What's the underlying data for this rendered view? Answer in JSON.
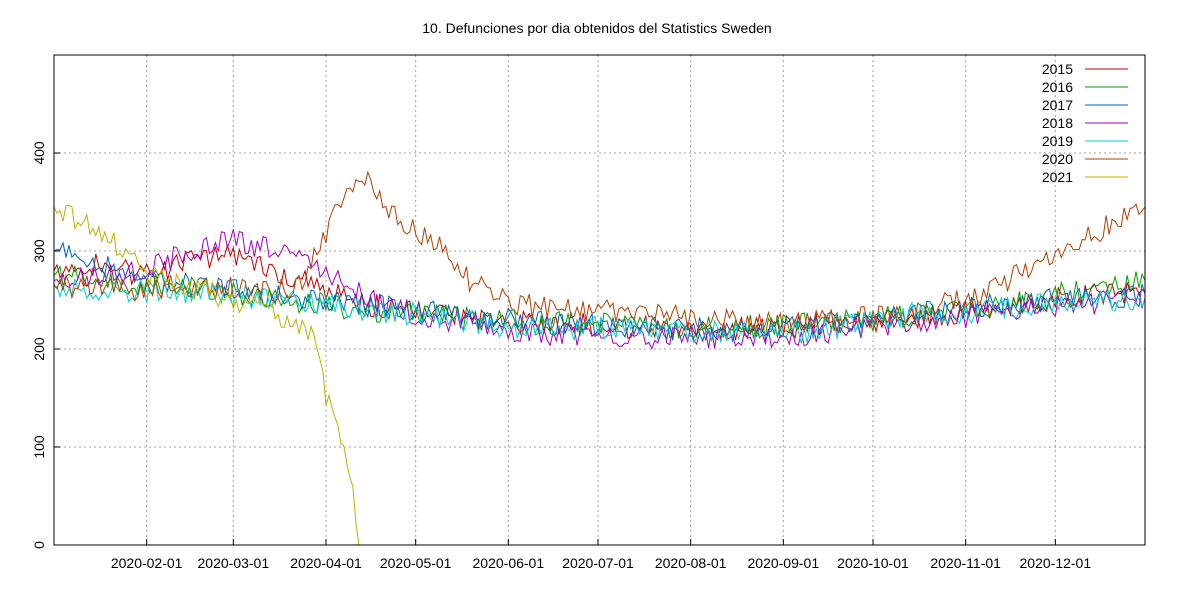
{
  "chart_data": {
    "type": "line",
    "title": "10. Defunciones por dia obtenidos del Statistics Sweden",
    "xlabel": "",
    "ylabel": "",
    "x_range": [
      "2020-01-01",
      "2020-12-31"
    ],
    "ylim": [
      0,
      500
    ],
    "y_ticks": [
      0,
      100,
      200,
      300,
      400
    ],
    "x_ticks": [
      "2020-02-01",
      "2020-03-01",
      "2020-04-01",
      "2020-05-01",
      "2020-06-01",
      "2020-07-01",
      "2020-08-01",
      "2020-09-01",
      "2020-10-01",
      "2020-11-01",
      "2020-12-01"
    ],
    "grid": true,
    "legend_position": "top-right",
    "series": [
      {
        "name": "2015",
        "color": "#c00000",
        "points": [
          [
            "2020-01-01",
            280
          ],
          [
            "2020-01-15",
            285
          ],
          [
            "2020-02-01",
            275
          ],
          [
            "2020-02-15",
            290
          ],
          [
            "2020-03-01",
            295
          ],
          [
            "2020-03-15",
            280
          ],
          [
            "2020-04-01",
            260
          ],
          [
            "2020-04-15",
            245
          ],
          [
            "2020-05-01",
            240
          ],
          [
            "2020-05-15",
            235
          ],
          [
            "2020-06-01",
            228
          ],
          [
            "2020-06-15",
            225
          ],
          [
            "2020-07-01",
            225
          ],
          [
            "2020-07-15",
            222
          ],
          [
            "2020-08-01",
            220
          ],
          [
            "2020-08-15",
            220
          ],
          [
            "2020-09-01",
            222
          ],
          [
            "2020-09-15",
            225
          ],
          [
            "2020-10-01",
            228
          ],
          [
            "2020-10-15",
            232
          ],
          [
            "2020-11-01",
            238
          ],
          [
            "2020-11-15",
            242
          ],
          [
            "2020-12-01",
            250
          ],
          [
            "2020-12-15",
            255
          ],
          [
            "2020-12-31",
            258
          ]
        ]
      },
      {
        "name": "2016",
        "color": "#00a000",
        "points": [
          [
            "2020-01-01",
            275
          ],
          [
            "2020-01-15",
            270
          ],
          [
            "2020-02-01",
            265
          ],
          [
            "2020-02-15",
            262
          ],
          [
            "2020-03-01",
            258
          ],
          [
            "2020-03-15",
            252
          ],
          [
            "2020-04-01",
            245
          ],
          [
            "2020-04-15",
            240
          ],
          [
            "2020-05-01",
            235
          ],
          [
            "2020-05-15",
            232
          ],
          [
            "2020-06-01",
            228
          ],
          [
            "2020-06-15",
            226
          ],
          [
            "2020-07-01",
            225
          ],
          [
            "2020-07-15",
            222
          ],
          [
            "2020-08-01",
            222
          ],
          [
            "2020-08-15",
            222
          ],
          [
            "2020-09-01",
            224
          ],
          [
            "2020-09-15",
            226
          ],
          [
            "2020-10-01",
            230
          ],
          [
            "2020-10-15",
            235
          ],
          [
            "2020-11-01",
            240
          ],
          [
            "2020-11-15",
            245
          ],
          [
            "2020-12-01",
            255
          ],
          [
            "2020-12-15",
            262
          ],
          [
            "2020-12-31",
            270
          ]
        ]
      },
      {
        "name": "2017",
        "color": "#0060c0",
        "points": [
          [
            "2020-01-01",
            300
          ],
          [
            "2020-01-15",
            290
          ],
          [
            "2020-02-01",
            270
          ],
          [
            "2020-02-15",
            265
          ],
          [
            "2020-03-01",
            260
          ],
          [
            "2020-03-15",
            255
          ],
          [
            "2020-04-01",
            250
          ],
          [
            "2020-04-15",
            245
          ],
          [
            "2020-05-01",
            240
          ],
          [
            "2020-05-15",
            235
          ],
          [
            "2020-06-01",
            230
          ],
          [
            "2020-06-15",
            226
          ],
          [
            "2020-07-01",
            224
          ],
          [
            "2020-07-15",
            222
          ],
          [
            "2020-08-01",
            220
          ],
          [
            "2020-08-15",
            220
          ],
          [
            "2020-09-01",
            222
          ],
          [
            "2020-09-15",
            226
          ],
          [
            "2020-10-01",
            230
          ],
          [
            "2020-10-15",
            236
          ],
          [
            "2020-11-01",
            242
          ],
          [
            "2020-11-15",
            245
          ],
          [
            "2020-12-01",
            250
          ],
          [
            "2020-12-15",
            252
          ],
          [
            "2020-12-31",
            256
          ]
        ]
      },
      {
        "name": "2018",
        "color": "#a000c0",
        "points": [
          [
            "2020-01-01",
            270
          ],
          [
            "2020-01-15",
            275
          ],
          [
            "2020-02-01",
            280
          ],
          [
            "2020-02-15",
            300
          ],
          [
            "2020-03-01",
            310
          ],
          [
            "2020-03-15",
            300
          ],
          [
            "2020-04-01",
            280
          ],
          [
            "2020-04-15",
            250
          ],
          [
            "2020-05-01",
            235
          ],
          [
            "2020-05-15",
            228
          ],
          [
            "2020-06-01",
            218
          ],
          [
            "2020-06-15",
            215
          ],
          [
            "2020-07-01",
            215
          ],
          [
            "2020-07-15",
            212
          ],
          [
            "2020-08-01",
            212
          ],
          [
            "2020-08-15",
            210
          ],
          [
            "2020-09-01",
            212
          ],
          [
            "2020-09-15",
            216
          ],
          [
            "2020-10-01",
            222
          ],
          [
            "2020-10-15",
            228
          ],
          [
            "2020-11-01",
            232
          ],
          [
            "2020-11-15",
            238
          ],
          [
            "2020-12-01",
            242
          ],
          [
            "2020-12-15",
            248
          ],
          [
            "2020-12-31",
            252
          ]
        ]
      },
      {
        "name": "2019",
        "color": "#00d0d0",
        "points": [
          [
            "2020-01-01",
            265
          ],
          [
            "2020-01-15",
            262
          ],
          [
            "2020-02-01",
            258
          ],
          [
            "2020-02-15",
            258
          ],
          [
            "2020-03-01",
            255
          ],
          [
            "2020-03-15",
            250
          ],
          [
            "2020-04-01",
            245
          ],
          [
            "2020-04-15",
            240
          ],
          [
            "2020-05-01",
            235
          ],
          [
            "2020-05-15",
            230
          ],
          [
            "2020-06-01",
            222
          ],
          [
            "2020-06-15",
            220
          ],
          [
            "2020-07-01",
            222
          ],
          [
            "2020-07-15",
            220
          ],
          [
            "2020-08-01",
            218
          ],
          [
            "2020-08-15",
            216
          ],
          [
            "2020-09-01",
            216
          ],
          [
            "2020-09-15",
            220
          ],
          [
            "2020-10-01",
            228
          ],
          [
            "2020-10-15",
            236
          ],
          [
            "2020-11-01",
            238
          ],
          [
            "2020-11-15",
            242
          ],
          [
            "2020-12-01",
            246
          ],
          [
            "2020-12-15",
            248
          ],
          [
            "2020-12-31",
            250
          ]
        ]
      },
      {
        "name": "2020",
        "color": "#b04000",
        "points": [
          [
            "2020-01-01",
            265
          ],
          [
            "2020-01-15",
            262
          ],
          [
            "2020-02-01",
            260
          ],
          [
            "2020-02-15",
            262
          ],
          [
            "2020-03-01",
            262
          ],
          [
            "2020-03-15",
            260
          ],
          [
            "2020-03-25",
            270
          ],
          [
            "2020-04-01",
            320
          ],
          [
            "2020-04-08",
            355
          ],
          [
            "2020-04-15",
            375
          ],
          [
            "2020-04-22",
            340
          ],
          [
            "2020-05-01",
            320
          ],
          [
            "2020-05-08",
            310
          ],
          [
            "2020-05-15",
            280
          ],
          [
            "2020-05-22",
            265
          ],
          [
            "2020-06-01",
            248
          ],
          [
            "2020-06-15",
            240
          ],
          [
            "2020-07-01",
            240
          ],
          [
            "2020-07-15",
            238
          ],
          [
            "2020-08-01",
            232
          ],
          [
            "2020-08-15",
            228
          ],
          [
            "2020-09-01",
            226
          ],
          [
            "2020-09-15",
            228
          ],
          [
            "2020-10-01",
            232
          ],
          [
            "2020-10-15",
            240
          ],
          [
            "2020-11-01",
            250
          ],
          [
            "2020-11-15",
            270
          ],
          [
            "2020-12-01",
            300
          ],
          [
            "2020-12-15",
            320
          ],
          [
            "2020-12-31",
            345
          ]
        ]
      },
      {
        "name": "2021",
        "color": "#c0b000",
        "points": [
          [
            "2020-01-01",
            345
          ],
          [
            "2020-01-10",
            330
          ],
          [
            "2020-01-20",
            310
          ],
          [
            "2020-02-01",
            275
          ],
          [
            "2020-02-15",
            265
          ],
          [
            "2020-03-01",
            250
          ],
          [
            "2020-03-10",
            240
          ],
          [
            "2020-03-20",
            230
          ],
          [
            "2020-03-28",
            210
          ],
          [
            "2020-04-01",
            150
          ],
          [
            "2020-04-05",
            115
          ],
          [
            "2020-04-10",
            60
          ],
          [
            "2020-04-12",
            0
          ]
        ]
      }
    ]
  }
}
